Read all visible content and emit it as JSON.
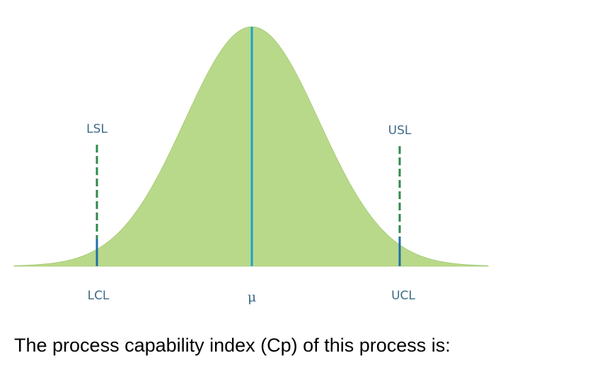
{
  "diagram": {
    "labels": {
      "lsl": "LSL",
      "usl": "USL",
      "lcl": "LCL",
      "ucl": "UCL",
      "mu": "μ"
    },
    "colors": {
      "curve_fill": "#b9d98a",
      "center_line": "#1aa3c8",
      "control_line": "#1f6fa8",
      "spec_line": "#2e8a4a",
      "label_text": "#3f6b88"
    }
  },
  "question": "The process capability index (Cp) of this process is:"
}
